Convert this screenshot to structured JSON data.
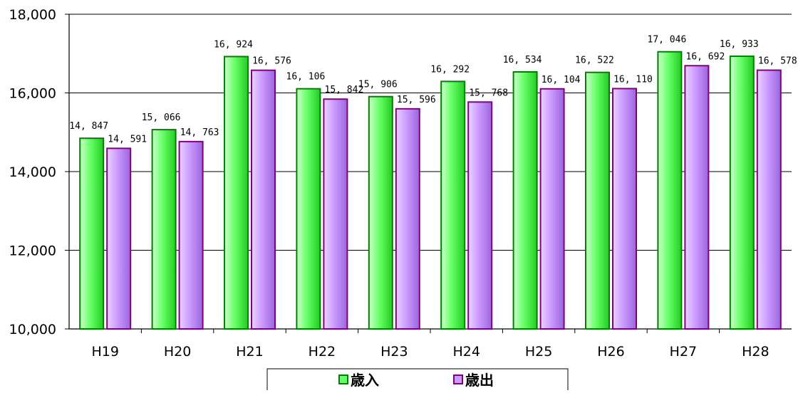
{
  "chart_data": {
    "type": "bar",
    "categories": [
      "H19",
      "H20",
      "H21",
      "H22",
      "H23",
      "H24",
      "H25",
      "H26",
      "H27",
      "H28"
    ],
    "series": [
      {
        "name": "歳入",
        "values": [
          14847,
          15066,
          16924,
          16106,
          15906,
          16292,
          16534,
          16522,
          17046,
          16933
        ],
        "labels": [
          "14, 847",
          "15, 066",
          "16, 924",
          "16, 106",
          "15, 906",
          "16, 292",
          "16, 534",
          "16, 522",
          "17, 046",
          "16, 933"
        ],
        "color": "#66ff66",
        "edge_color": "#008000"
      },
      {
        "name": "歳出",
        "values": [
          14591,
          14763,
          16576,
          15842,
          15596,
          15768,
          16104,
          16110,
          16692,
          16578
        ],
        "labels": [
          "14, 591",
          "14, 763",
          "16, 576",
          "15, 842",
          "15, 596",
          "15, 768",
          "16, 104",
          "16, 110",
          "16, 692",
          "16, 578"
        ],
        "color": "#cc99ff",
        "edge_color": "#800080"
      }
    ],
    "y_ticks": [
      {
        "value": 10000,
        "label": "10,000"
      },
      {
        "value": 12000,
        "label": "12,000"
      },
      {
        "value": 14000,
        "label": "14,000"
      },
      {
        "value": 16000,
        "label": "16,000"
      },
      {
        "value": 18000,
        "label": "18,000"
      }
    ],
    "ylim": [
      10000,
      18000
    ],
    "grid": true,
    "legend_position": "bottom-center",
    "title": "",
    "xlabel": "",
    "ylabel": ""
  }
}
